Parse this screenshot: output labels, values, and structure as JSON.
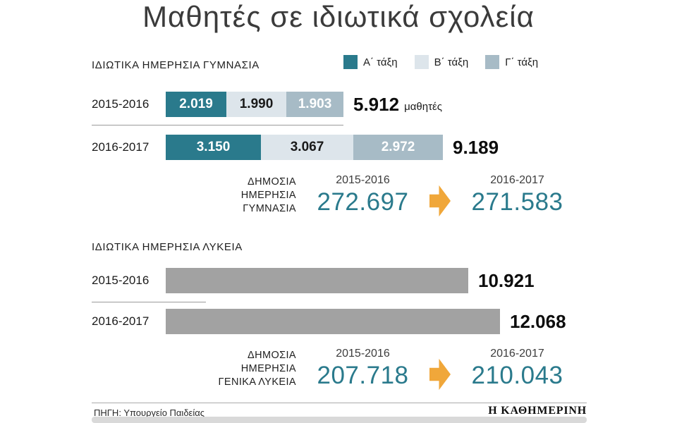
{
  "title": "Μαθητές σε ιδιωτικά σχολεία",
  "colors": {
    "class_a": "#2a7a8c",
    "class_b": "#dde5eb",
    "class_c": "#a7bbc6",
    "lykeia_bar": "#a2a2a2",
    "arrow": "#f0a73a",
    "accent_text": "#2a7a8c"
  },
  "gymnasia": {
    "section_label": "ΙΔΙΩΤΙΚΑ ΗΜΕΡΗΣΙΑ ΓΥΜΝΑΣΙΑ",
    "legend": [
      {
        "label": "Α΄ τάξη"
      },
      {
        "label": "Β΄ τάξη"
      },
      {
        "label": "Γ΄ τάξη"
      }
    ],
    "rows": [
      {
        "year": "2015-2016",
        "segments": [
          2019,
          1990,
          1903
        ],
        "segment_labels": [
          "2.019",
          "1.990",
          "1.903"
        ],
        "total": "5.912",
        "total_suffix": "μαθητές"
      },
      {
        "year": "2016-2017",
        "segments": [
          3150,
          3067,
          2972
        ],
        "segment_labels": [
          "3.150",
          "3.067",
          "2.972"
        ],
        "total": "9.189",
        "total_suffix": ""
      }
    ],
    "public": {
      "line1": "ΔΗΜΟΣΙΑ",
      "line2": "ΗΜΕΡΗΣΙΑ",
      "line3": "ΓΥΜΝΑΣΙΑ",
      "from_year": "2015-2016",
      "from_value": "272.697",
      "to_year": "2016-2017",
      "to_value": "271.583"
    }
  },
  "lykeia": {
    "section_label": "ΙΔΙΩΤΙΚΑ ΗΜΕΡΗΣΙΑ ΛΥΚΕΙΑ",
    "rows": [
      {
        "year": "2015-2016",
        "value": 10921,
        "total": "10.921"
      },
      {
        "year": "2016-2017",
        "value": 12068,
        "total": "12.068"
      }
    ],
    "public": {
      "line1": "ΔΗΜΟΣΙΑ",
      "line2": "ΗΜΕΡΗΣΙΑ",
      "line3": "ΓΕΝΙΚΑ ΛΥΚΕΙΑ",
      "from_year": "2015-2016",
      "from_value": "207.718",
      "to_year": "2016-2017",
      "to_value": "210.043"
    }
  },
  "footer": {
    "source": "ΠΗΓΗ: Υπουργείο Παιδείας",
    "brand": "Η ΚΑΘΗΜΕΡΙΝΗ"
  },
  "chart_data": [
    {
      "type": "bar",
      "title": "ΙΔΙΩΤΙΚΑ ΗΜΕΡΗΣΙΑ ΓΥΜΝΑΣΙΑ",
      "stacked": true,
      "orientation": "horizontal",
      "categories": [
        "2015-2016",
        "2016-2017"
      ],
      "series": [
        {
          "name": "Α΄ τάξη",
          "values": [
            2019,
            3150
          ]
        },
        {
          "name": "Β΄ τάξη",
          "values": [
            1990,
            3067
          ]
        },
        {
          "name": "Γ΄ τάξη",
          "values": [
            1903,
            2972
          ]
        }
      ],
      "totals": [
        5912,
        9189
      ],
      "total_unit": "μαθητές",
      "legend_position": "top-right",
      "grid": false
    },
    {
      "type": "bar",
      "title": "ΙΔΙΩΤΙΚΑ ΗΜΕΡΗΣΙΑ ΛΥΚΕΙΑ",
      "orientation": "horizontal",
      "categories": [
        "2015-2016",
        "2016-2017"
      ],
      "values": [
        10921,
        12068
      ],
      "grid": false
    },
    {
      "type": "table",
      "title": "ΔΗΜΟΣΙΑ ΗΜΕΡΗΣΙΑ ΓΥΜΝΑΣΙΑ",
      "categories": [
        "2015-2016",
        "2016-2017"
      ],
      "values": [
        272697,
        271583
      ]
    },
    {
      "type": "table",
      "title": "ΔΗΜΟΣΙΑ ΗΜΕΡΗΣΙΑ ΓΕΝΙΚΑ ΛΥΚΕΙΑ",
      "categories": [
        "2015-2016",
        "2016-2017"
      ],
      "values": [
        207718,
        210043
      ]
    }
  ]
}
